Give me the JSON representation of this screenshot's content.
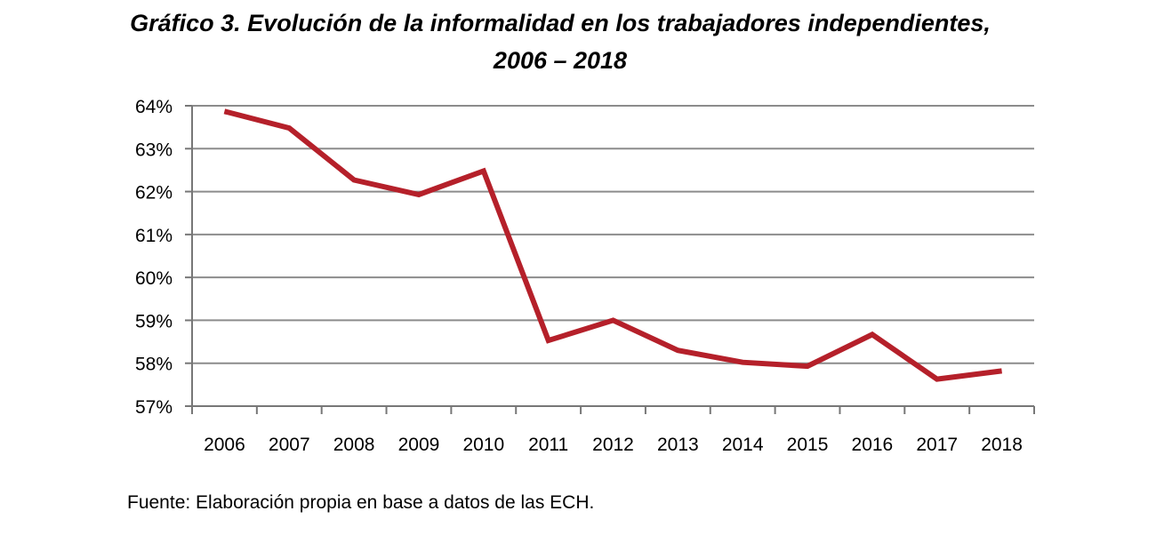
{
  "chart_data": {
    "type": "line",
    "title": "Gráfico 3. Evolución de la informalidad en los trabajadores independientes,",
    "subtitle": "2006 – 2018",
    "xlabel": "",
    "ylabel": "",
    "x": [
      "2006",
      "2007",
      "2008",
      "2009",
      "2010",
      "2011",
      "2012",
      "2013",
      "2014",
      "2015",
      "2016",
      "2017",
      "2018"
    ],
    "series": [
      {
        "values": [
          63.87,
          63.48,
          62.27,
          61.93,
          62.48,
          58.53,
          59.0,
          58.3,
          58.02,
          57.93,
          58.67,
          57.63,
          57.82
        ]
      }
    ],
    "ylim": [
      57,
      64
    ],
    "yticks": [
      "57%",
      "58%",
      "59%",
      "60%",
      "61%",
      "62%",
      "63%",
      "64%"
    ],
    "grid": true,
    "colors": {
      "line": "#b5202a",
      "grid": "#8c8c8c",
      "axis": "#777777"
    },
    "source": "Fuente: Elaboración propia en base a datos de las ECH."
  }
}
